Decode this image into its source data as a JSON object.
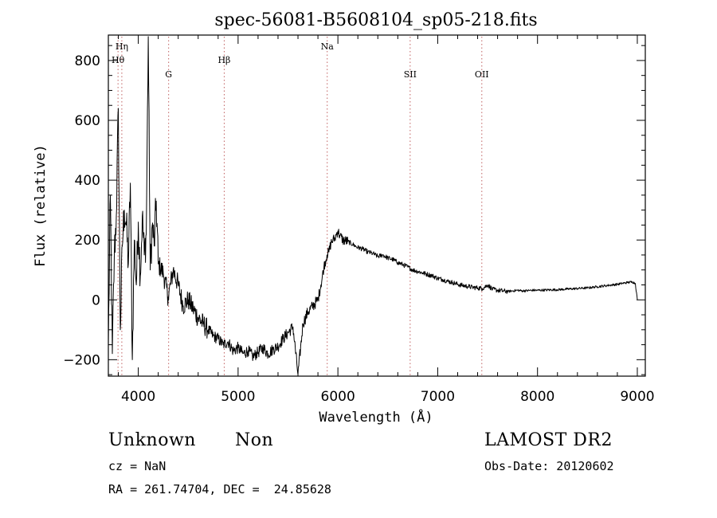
{
  "chart_data": {
    "type": "line",
    "title": "spec-56081-B5608104_sp05-218.fits",
    "xlabel": "Wavelength (Å)",
    "ylabel": "Flux (relative)",
    "xlim": [
      3700,
      9080
    ],
    "ylim": [
      -255,
      885
    ],
    "x_ticks": [
      4000,
      5000,
      6000,
      7000,
      8000,
      9000
    ],
    "x_tick_labels": [
      "4000",
      "5000",
      "6000",
      "7000",
      "8000",
      "9000"
    ],
    "y_ticks": [
      -200,
      0,
      200,
      400,
      600,
      800
    ],
    "y_tick_labels": [
      "−200",
      "0",
      "200",
      "400",
      "600",
      "800"
    ],
    "grid": false,
    "line_color": "#000000",
    "marker_color": "#c06060",
    "lines": [
      {
        "name": "Hη",
        "x": 3835,
        "row": 1
      },
      {
        "name": "Hθ",
        "x": 3797,
        "row": 2
      },
      {
        "name": "G",
        "x": 4304,
        "row": 3
      },
      {
        "name": "Hβ",
        "x": 4861,
        "row": 2
      },
      {
        "name": "Na",
        "x": 5893,
        "row": 1
      },
      {
        "name": "SII",
        "x": 6724,
        "row": 3
      },
      {
        "name": "OII",
        "x": 7442,
        "row": 3
      }
    ],
    "series": [
      {
        "x": [
          3700,
          3720,
          3740,
          3760,
          3780,
          3800,
          3820,
          3840,
          3860,
          3880,
          3900,
          3920,
          3940,
          3960,
          3980,
          4000,
          4020,
          4040,
          4060,
          4080,
          4100,
          4120,
          4140,
          4160,
          4180,
          4200,
          4250,
          4300,
          4350,
          4400,
          4450,
          4500,
          4550,
          4600,
          4650,
          4700,
          4750,
          4800,
          4850,
          4900,
          4950,
          5000,
          5050,
          5100,
          5150,
          5200,
          5250,
          5300,
          5350,
          5400,
          5450,
          5500,
          5550,
          5600,
          5650,
          5700,
          5750,
          5800,
          5830,
          5860,
          5890,
          5910,
          5930,
          5950,
          5970,
          5990,
          6000,
          6020,
          6050,
          6100,
          6150,
          6200,
          6250,
          6300,
          6350,
          6400,
          6450,
          6500,
          6550,
          6600,
          6650,
          6700,
          6750,
          6800,
          6850,
          6900,
          6950,
          7000,
          7050,
          7100,
          7150,
          7200,
          7250,
          7300,
          7350,
          7400,
          7450,
          7500,
          7550,
          7600,
          7650,
          7700,
          7750,
          7800,
          7850,
          7900,
          7950,
          8000,
          8100,
          8200,
          8300,
          8400,
          8500,
          8600,
          8700,
          8800,
          8850,
          8900,
          8950,
          8980,
          9000
        ],
        "y": [
          -150,
          350,
          -180,
          150,
          280,
          640,
          -100,
          180,
          300,
          250,
          120,
          390,
          -200,
          200,
          50,
          260,
          80,
          280,
          150,
          220,
          880,
          100,
          250,
          180,
          330,
          120,
          90,
          10,
          100,
          50,
          -20,
          0,
          -30,
          -60,
          -80,
          -100,
          -120,
          -130,
          -150,
          -140,
          -170,
          -160,
          -180,
          -170,
          -190,
          -175,
          -160,
          -180,
          -165,
          -155,
          -130,
          -110,
          -90,
          -250,
          -80,
          -40,
          -20,
          0,
          50,
          110,
          150,
          160,
          190,
          200,
          205,
          225,
          230,
          215,
          200,
          195,
          185,
          175,
          170,
          160,
          155,
          145,
          150,
          140,
          135,
          125,
          118,
          110,
          100,
          95,
          90,
          85,
          80,
          72,
          68,
          62,
          58,
          52,
          48,
          45,
          42,
          40,
          38,
          50,
          35,
          32,
          30,
          28,
          30,
          32,
          30,
          31,
          32,
          32,
          33,
          34,
          36,
          38,
          40,
          44,
          48,
          52,
          55,
          58,
          60,
          55,
          0
        ]
      }
    ]
  },
  "info": {
    "object_class": "Unknown",
    "subclass": "Non",
    "survey": "LAMOST DR2",
    "redshift": "cz = NaN",
    "obs_date": "Obs-Date: 20120602",
    "coords": "RA = 261.74704, DEC =  24.85628"
  }
}
